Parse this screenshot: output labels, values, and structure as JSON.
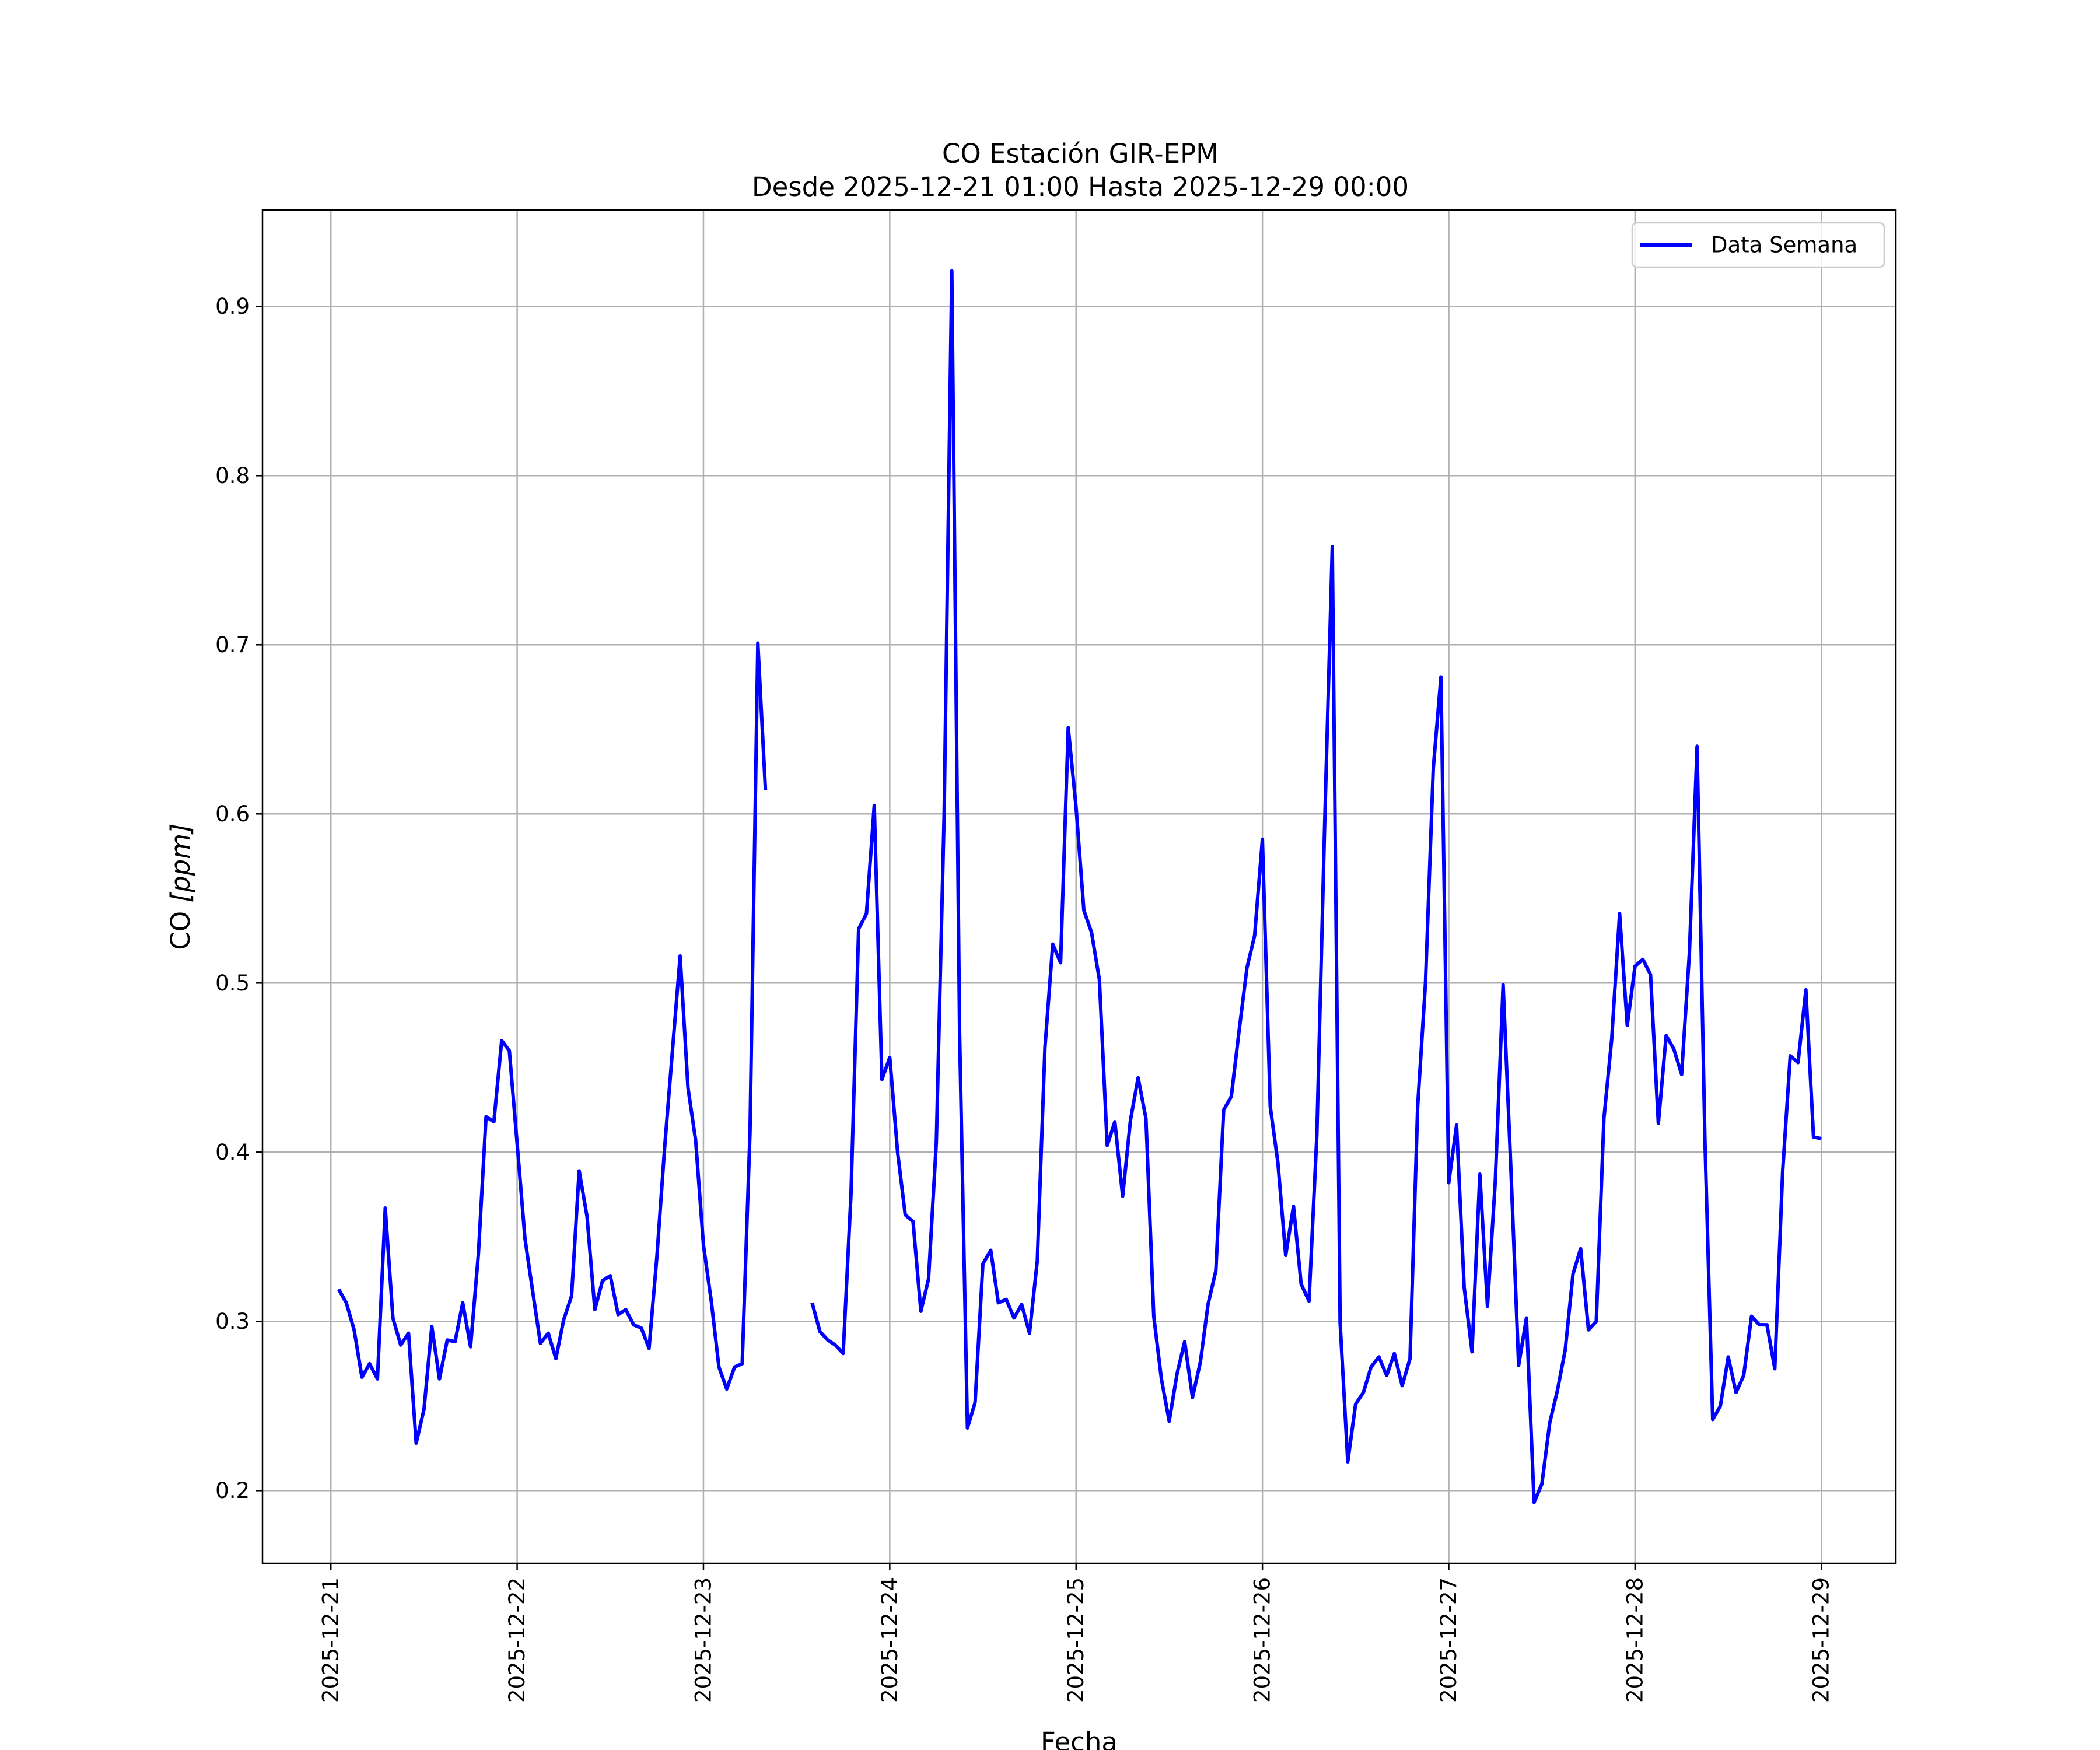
{
  "chart_data": {
    "type": "line",
    "title": "CO Estación GIR-EPM",
    "subtitle": "Desde 2025-12-21 01:00 Hasta 2025-12-29 00:00",
    "xlabel": "Fecha",
    "ylabel_main": "CO ",
    "ylabel_unit": "[ppm]",
    "x_tick_labels": [
      "2025-12-21",
      "2025-12-22",
      "2025-12-23",
      "2025-12-24",
      "2025-12-25",
      "2025-12-26",
      "2025-12-27",
      "2025-12-28",
      "2025-12-29"
    ],
    "y_tick_labels": [
      "0.2",
      "0.3",
      "0.4",
      "0.5",
      "0.6",
      "0.7",
      "0.8",
      "0.9"
    ],
    "xlim": [
      -0.367,
      8.4
    ],
    "ylim": [
      0.157,
      0.957
    ],
    "grid": true,
    "legend_position": "top-right",
    "colors": {
      "series": "#0000ff",
      "grid": "#b0b0b0",
      "frame": "#000000"
    },
    "series": [
      {
        "name": "Data Semana",
        "points": [
          [
            0.042,
            0.319
          ],
          [
            0.083,
            0.311
          ],
          [
            0.125,
            0.295
          ],
          [
            0.167,
            0.267
          ],
          [
            0.208,
            0.275
          ],
          [
            0.25,
            0.266
          ],
          [
            0.292,
            0.367
          ],
          [
            0.333,
            0.302
          ],
          [
            0.375,
            0.286
          ],
          [
            0.417,
            0.293
          ],
          [
            0.458,
            0.228
          ],
          [
            0.5,
            0.248
          ],
          [
            0.542,
            0.297
          ],
          [
            0.583,
            0.266
          ],
          [
            0.625,
            0.289
          ],
          [
            0.667,
            0.288
          ],
          [
            0.708,
            0.311
          ],
          [
            0.75,
            0.285
          ],
          [
            0.792,
            0.34
          ],
          [
            0.833,
            0.421
          ],
          [
            0.875,
            0.418
          ],
          [
            0.917,
            0.466
          ],
          [
            0.958,
            0.46
          ],
          [
            1.0,
            0.405
          ],
          [
            1.042,
            0.349
          ],
          [
            1.083,
            0.318
          ],
          [
            1.125,
            0.287
          ],
          [
            1.167,
            0.293
          ],
          [
            1.208,
            0.278
          ],
          [
            1.25,
            0.301
          ],
          [
            1.292,
            0.315
          ],
          [
            1.333,
            0.389
          ],
          [
            1.375,
            0.362
          ],
          [
            1.417,
            0.307
          ],
          [
            1.458,
            0.324
          ],
          [
            1.5,
            0.327
          ],
          [
            1.542,
            0.304
          ],
          [
            1.583,
            0.307
          ],
          [
            1.625,
            0.298
          ],
          [
            1.667,
            0.296
          ],
          [
            1.708,
            0.284
          ],
          [
            1.75,
            0.338
          ],
          [
            1.792,
            0.403
          ],
          [
            1.833,
            0.459
          ],
          [
            1.875,
            0.516
          ],
          [
            1.917,
            0.438
          ],
          [
            1.958,
            0.407
          ],
          [
            2.0,
            0.345
          ],
          [
            2.042,
            0.312
          ],
          [
            2.083,
            0.273
          ],
          [
            2.125,
            0.26
          ],
          [
            2.167,
            0.273
          ],
          [
            2.208,
            0.275
          ],
          [
            2.25,
            0.412
          ],
          [
            2.292,
            0.701
          ],
          [
            2.333,
            0.614
          ],
          null,
          [
            2.583,
            0.311
          ],
          [
            2.625,
            0.294
          ],
          [
            2.667,
            0.289
          ],
          [
            2.708,
            0.286
          ],
          [
            2.75,
            0.281
          ],
          [
            2.792,
            0.375
          ],
          [
            2.833,
            0.532
          ],
          [
            2.875,
            0.541
          ],
          [
            2.917,
            0.605
          ],
          [
            2.958,
            0.443
          ],
          [
            3.0,
            0.456
          ],
          [
            3.042,
            0.4
          ],
          [
            3.083,
            0.363
          ],
          [
            3.125,
            0.359
          ],
          [
            3.167,
            0.306
          ],
          [
            3.208,
            0.325
          ],
          [
            3.25,
            0.406
          ],
          [
            3.292,
            0.6
          ],
          [
            3.333,
            0.921
          ],
          [
            3.375,
            0.47
          ],
          [
            3.417,
            0.237
          ],
          [
            3.458,
            0.252
          ],
          [
            3.5,
            0.334
          ],
          [
            3.542,
            0.342
          ],
          [
            3.583,
            0.311
          ],
          [
            3.625,
            0.313
          ],
          [
            3.667,
            0.302
          ],
          [
            3.708,
            0.31
          ],
          [
            3.75,
            0.293
          ],
          [
            3.792,
            0.336
          ],
          [
            3.833,
            0.462
          ],
          [
            3.875,
            0.523
          ],
          [
            3.917,
            0.512
          ],
          [
            3.958,
            0.651
          ],
          [
            4.0,
            0.604
          ],
          [
            4.042,
            0.543
          ],
          [
            4.083,
            0.53
          ],
          [
            4.125,
            0.502
          ],
          [
            4.167,
            0.404
          ],
          [
            4.208,
            0.418
          ],
          [
            4.25,
            0.374
          ],
          [
            4.292,
            0.419
          ],
          [
            4.333,
            0.444
          ],
          [
            4.375,
            0.42
          ],
          [
            4.417,
            0.303
          ],
          [
            4.458,
            0.266
          ],
          [
            4.5,
            0.241
          ],
          [
            4.542,
            0.269
          ],
          [
            4.583,
            0.288
          ],
          [
            4.625,
            0.255
          ],
          [
            4.667,
            0.276
          ],
          [
            4.708,
            0.31
          ],
          [
            4.75,
            0.33
          ],
          [
            4.792,
            0.425
          ],
          [
            4.833,
            0.433
          ],
          [
            4.875,
            0.472
          ],
          [
            4.917,
            0.509
          ],
          [
            4.958,
            0.528
          ],
          [
            5.0,
            0.585
          ],
          [
            5.042,
            0.427
          ],
          [
            5.083,
            0.394
          ],
          [
            5.125,
            0.339
          ],
          [
            5.167,
            0.368
          ],
          [
            5.208,
            0.322
          ],
          [
            5.25,
            0.312
          ],
          [
            5.292,
            0.41
          ],
          [
            5.333,
            0.59
          ],
          [
            5.375,
            0.758
          ],
          [
            5.417,
            0.299
          ],
          [
            5.458,
            0.217
          ],
          [
            5.5,
            0.251
          ],
          [
            5.542,
            0.258
          ],
          [
            5.583,
            0.273
          ],
          [
            5.625,
            0.279
          ],
          [
            5.667,
            0.268
          ],
          [
            5.708,
            0.281
          ],
          [
            5.75,
            0.262
          ],
          [
            5.792,
            0.278
          ],
          [
            5.833,
            0.427
          ],
          [
            5.875,
            0.5
          ],
          [
            5.917,
            0.627
          ],
          [
            5.958,
            0.681
          ],
          [
            6.0,
            0.382
          ],
          [
            6.042,
            0.416
          ],
          [
            6.083,
            0.32
          ],
          [
            6.125,
            0.282
          ],
          [
            6.167,
            0.387
          ],
          [
            6.208,
            0.309
          ],
          [
            6.25,
            0.383
          ],
          [
            6.292,
            0.499
          ],
          [
            6.333,
            0.392
          ],
          [
            6.375,
            0.274
          ],
          [
            6.417,
            0.302
          ],
          [
            6.458,
            0.193
          ],
          [
            6.5,
            0.204
          ],
          [
            6.542,
            0.24
          ],
          [
            6.583,
            0.259
          ],
          [
            6.625,
            0.283
          ],
          [
            6.667,
            0.328
          ],
          [
            6.708,
            0.343
          ],
          [
            6.75,
            0.295
          ],
          [
            6.792,
            0.3
          ],
          [
            6.833,
            0.42
          ],
          [
            6.875,
            0.467
          ],
          [
            6.917,
            0.541
          ],
          [
            6.958,
            0.475
          ],
          [
            7.0,
            0.51
          ],
          [
            7.042,
            0.514
          ],
          [
            7.083,
            0.505
          ],
          [
            7.125,
            0.417
          ],
          [
            7.167,
            0.469
          ],
          [
            7.208,
            0.461
          ],
          [
            7.25,
            0.446
          ],
          [
            7.292,
            0.518
          ],
          [
            7.333,
            0.64
          ],
          [
            7.375,
            0.408
          ],
          [
            7.417,
            0.242
          ],
          [
            7.458,
            0.25
          ],
          [
            7.5,
            0.279
          ],
          [
            7.542,
            0.258
          ],
          [
            7.583,
            0.268
          ],
          [
            7.625,
            0.303
          ],
          [
            7.667,
            0.298
          ],
          [
            7.708,
            0.298
          ],
          [
            7.75,
            0.272
          ],
          [
            7.792,
            0.388
          ],
          [
            7.833,
            0.457
          ],
          [
            7.875,
            0.453
          ],
          [
            7.917,
            0.496
          ],
          [
            7.958,
            0.409
          ],
          [
            8.0,
            0.408
          ]
        ]
      }
    ]
  }
}
